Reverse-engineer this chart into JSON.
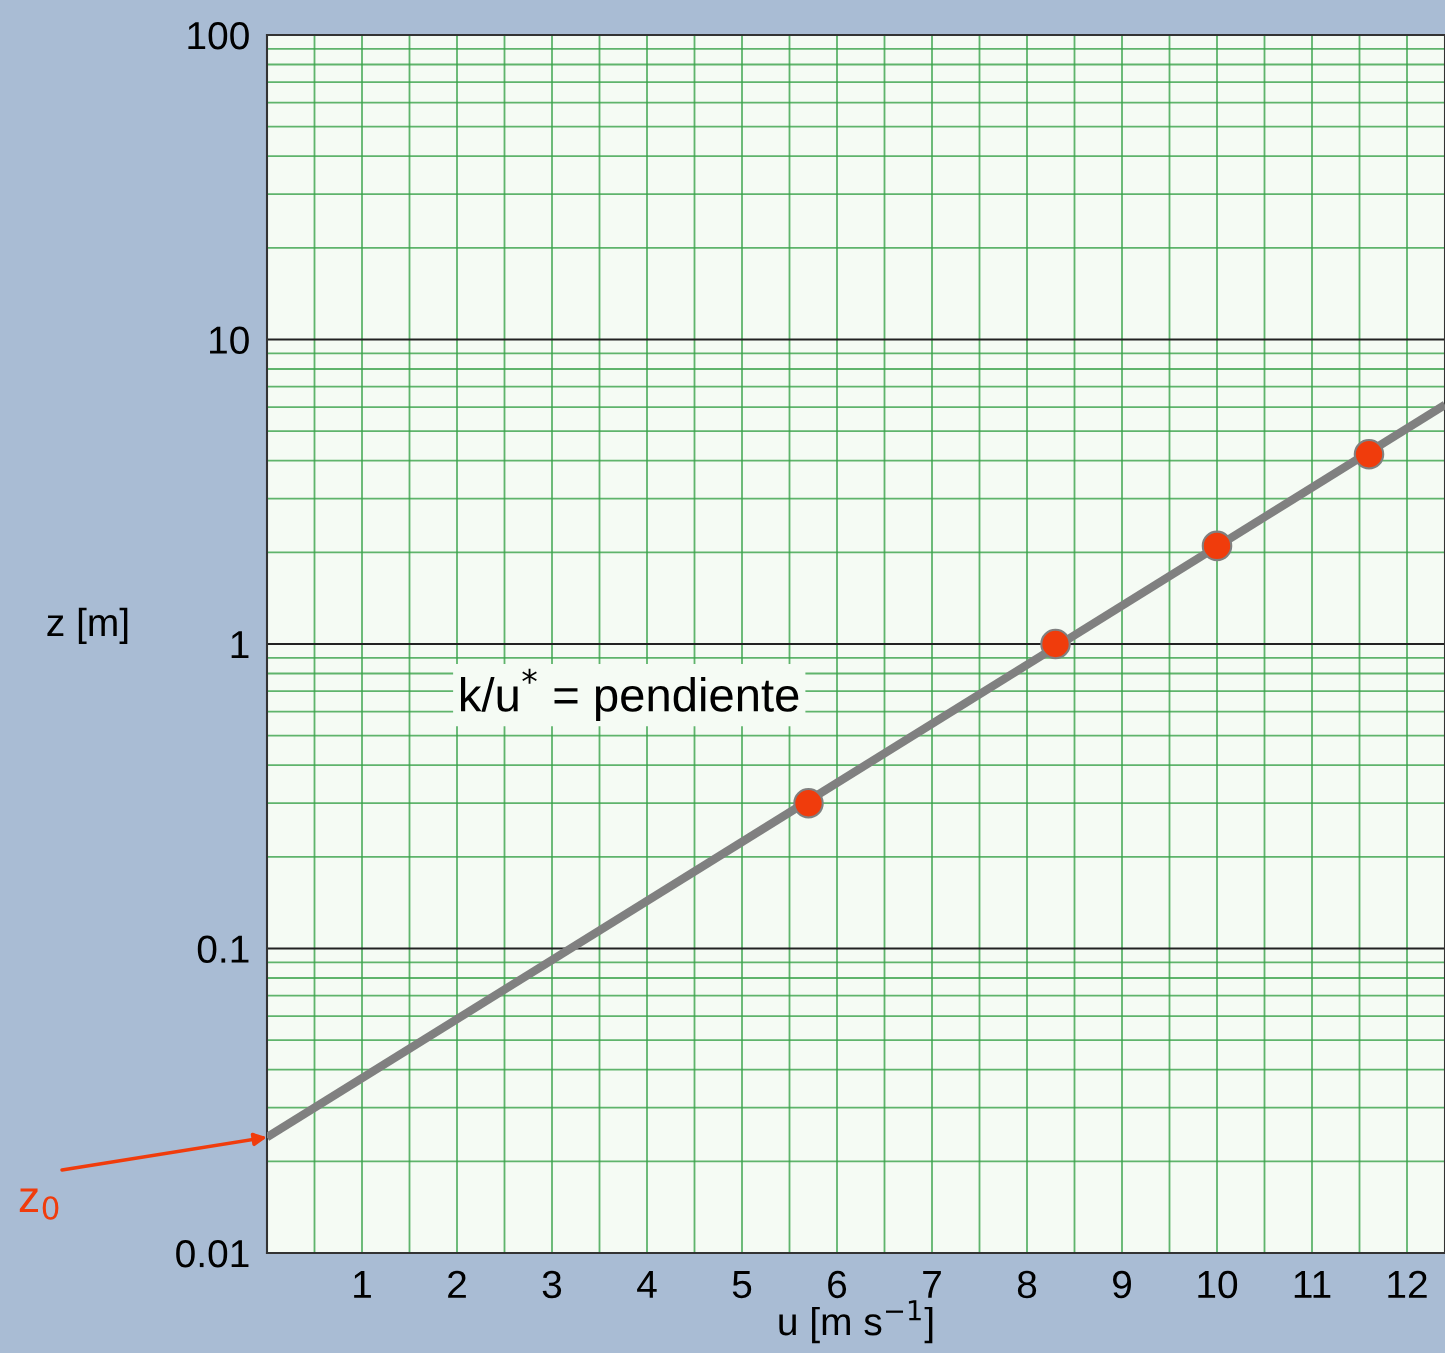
{
  "chart_data": {
    "type": "scatter",
    "xlabel": "u [m s$^{−1}$]",
    "ylabel": "z [m]",
    "log": "y",
    "grid": true,
    "marker": "circle",
    "xlim": [
      0,
      12.4
    ],
    "xticks": [
      1,
      2,
      3,
      4,
      5,
      6,
      7,
      8,
      9,
      10,
      11,
      12
    ],
    "ylim": [
      0.01,
      100
    ],
    "yticks": [
      0.01,
      0.1,
      1,
      10,
      100
    ],
    "series": [
      {
        "color": "#f03c0c",
        "x": [
          5.7,
          8.3,
          10.0,
          11.6
        ],
        "values": [
          0.3,
          1.0,
          2.1,
          4.2
        ]
      },
      {
        "type": "line",
        "color": "#808080",
        "x": [
          0,
          12.4
        ],
        "values": [
          0.024,
          6.1
        ],
        "line_style": "solid",
        "marker": "none"
      }
    ],
    "annotations": [
      "k/u$^{*}$ = pendiente",
      "z$_{0}$"
    ]
  }
}
